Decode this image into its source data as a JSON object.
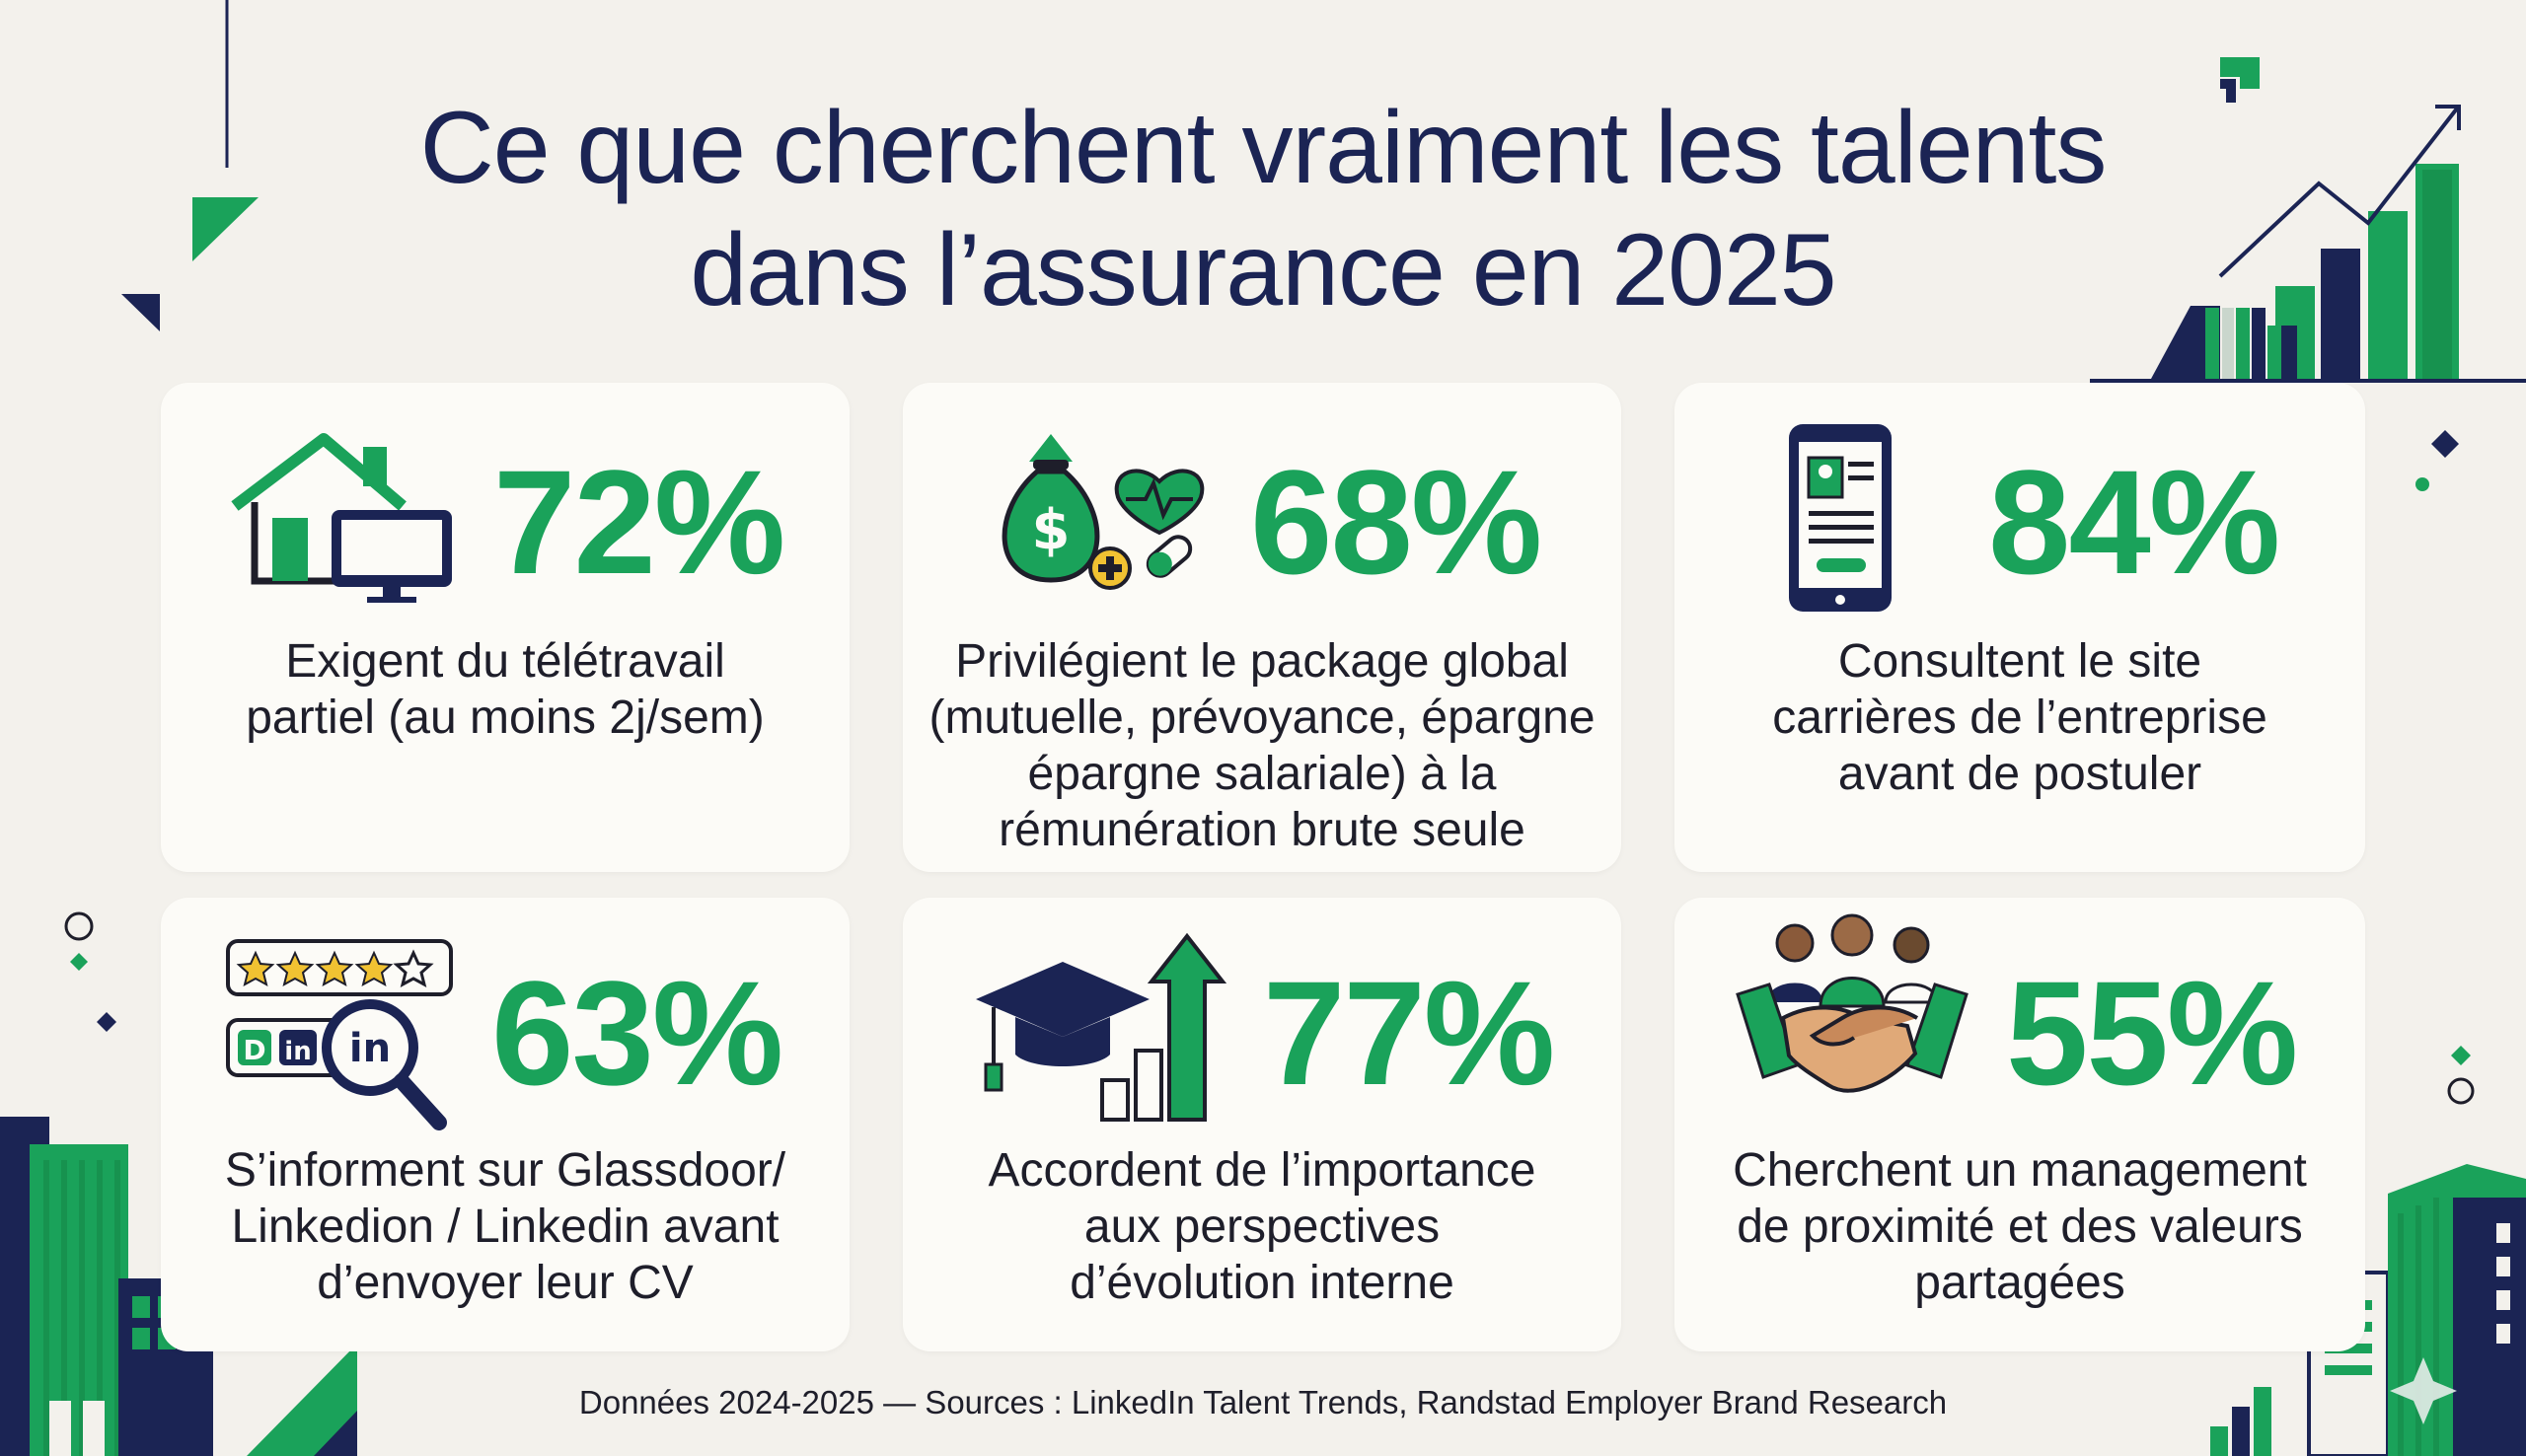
{
  "title": {
    "line1": "Ce que cherchent vraiment les talents",
    "line2": "dans l’assurance en 2025"
  },
  "cards": [
    {
      "value": "72%",
      "icon": "house-computer-icon",
      "desc": [
        "Exigent du télétravail",
        "partiel (au moins 2j/sem)"
      ]
    },
    {
      "value": "68%",
      "icon": "money-bag-health-icon",
      "desc": [
        "Privilégient le package global",
        "(mutuelle, prévoyance, épargne",
        "épargne salariale) à la",
        "rémunération brute seule"
      ]
    },
    {
      "value": "84%",
      "icon": "smartphone-profile-icon",
      "desc": [
        "Consultent le site",
        "carrières de l’entreprise",
        "avant de postuler"
      ]
    },
    {
      "value": "63%",
      "icon": "reviews-linkedin-search-icon",
      "icon_text": {
        "gd": "D",
        "in1": "in",
        "in2": "in"
      },
      "desc": [
        "S’informent sur Glassdoor/",
        "Linkedion / Linkedin avant",
        "d’envoyer leur CV"
      ]
    },
    {
      "value": "77%",
      "icon": "graduation-cap-growth-icon",
      "desc": [
        "Accordent de l’importance",
        "aux perspectives",
        "d’évolution interne"
      ]
    },
    {
      "value": "55%",
      "icon": "handshake-team-icon",
      "desc": [
        "Cherchent un management",
        "de proximité et des valeurs",
        "partagées"
      ]
    }
  ],
  "source": "Données 2024-2025 — Sources : LinkedIn Talent Trends, Randstad Employer Brand Research",
  "colors": {
    "background": "#f3f1ec",
    "navy": "#1b2454",
    "green": "#1aa25a",
    "card": "#fcfbf7"
  }
}
